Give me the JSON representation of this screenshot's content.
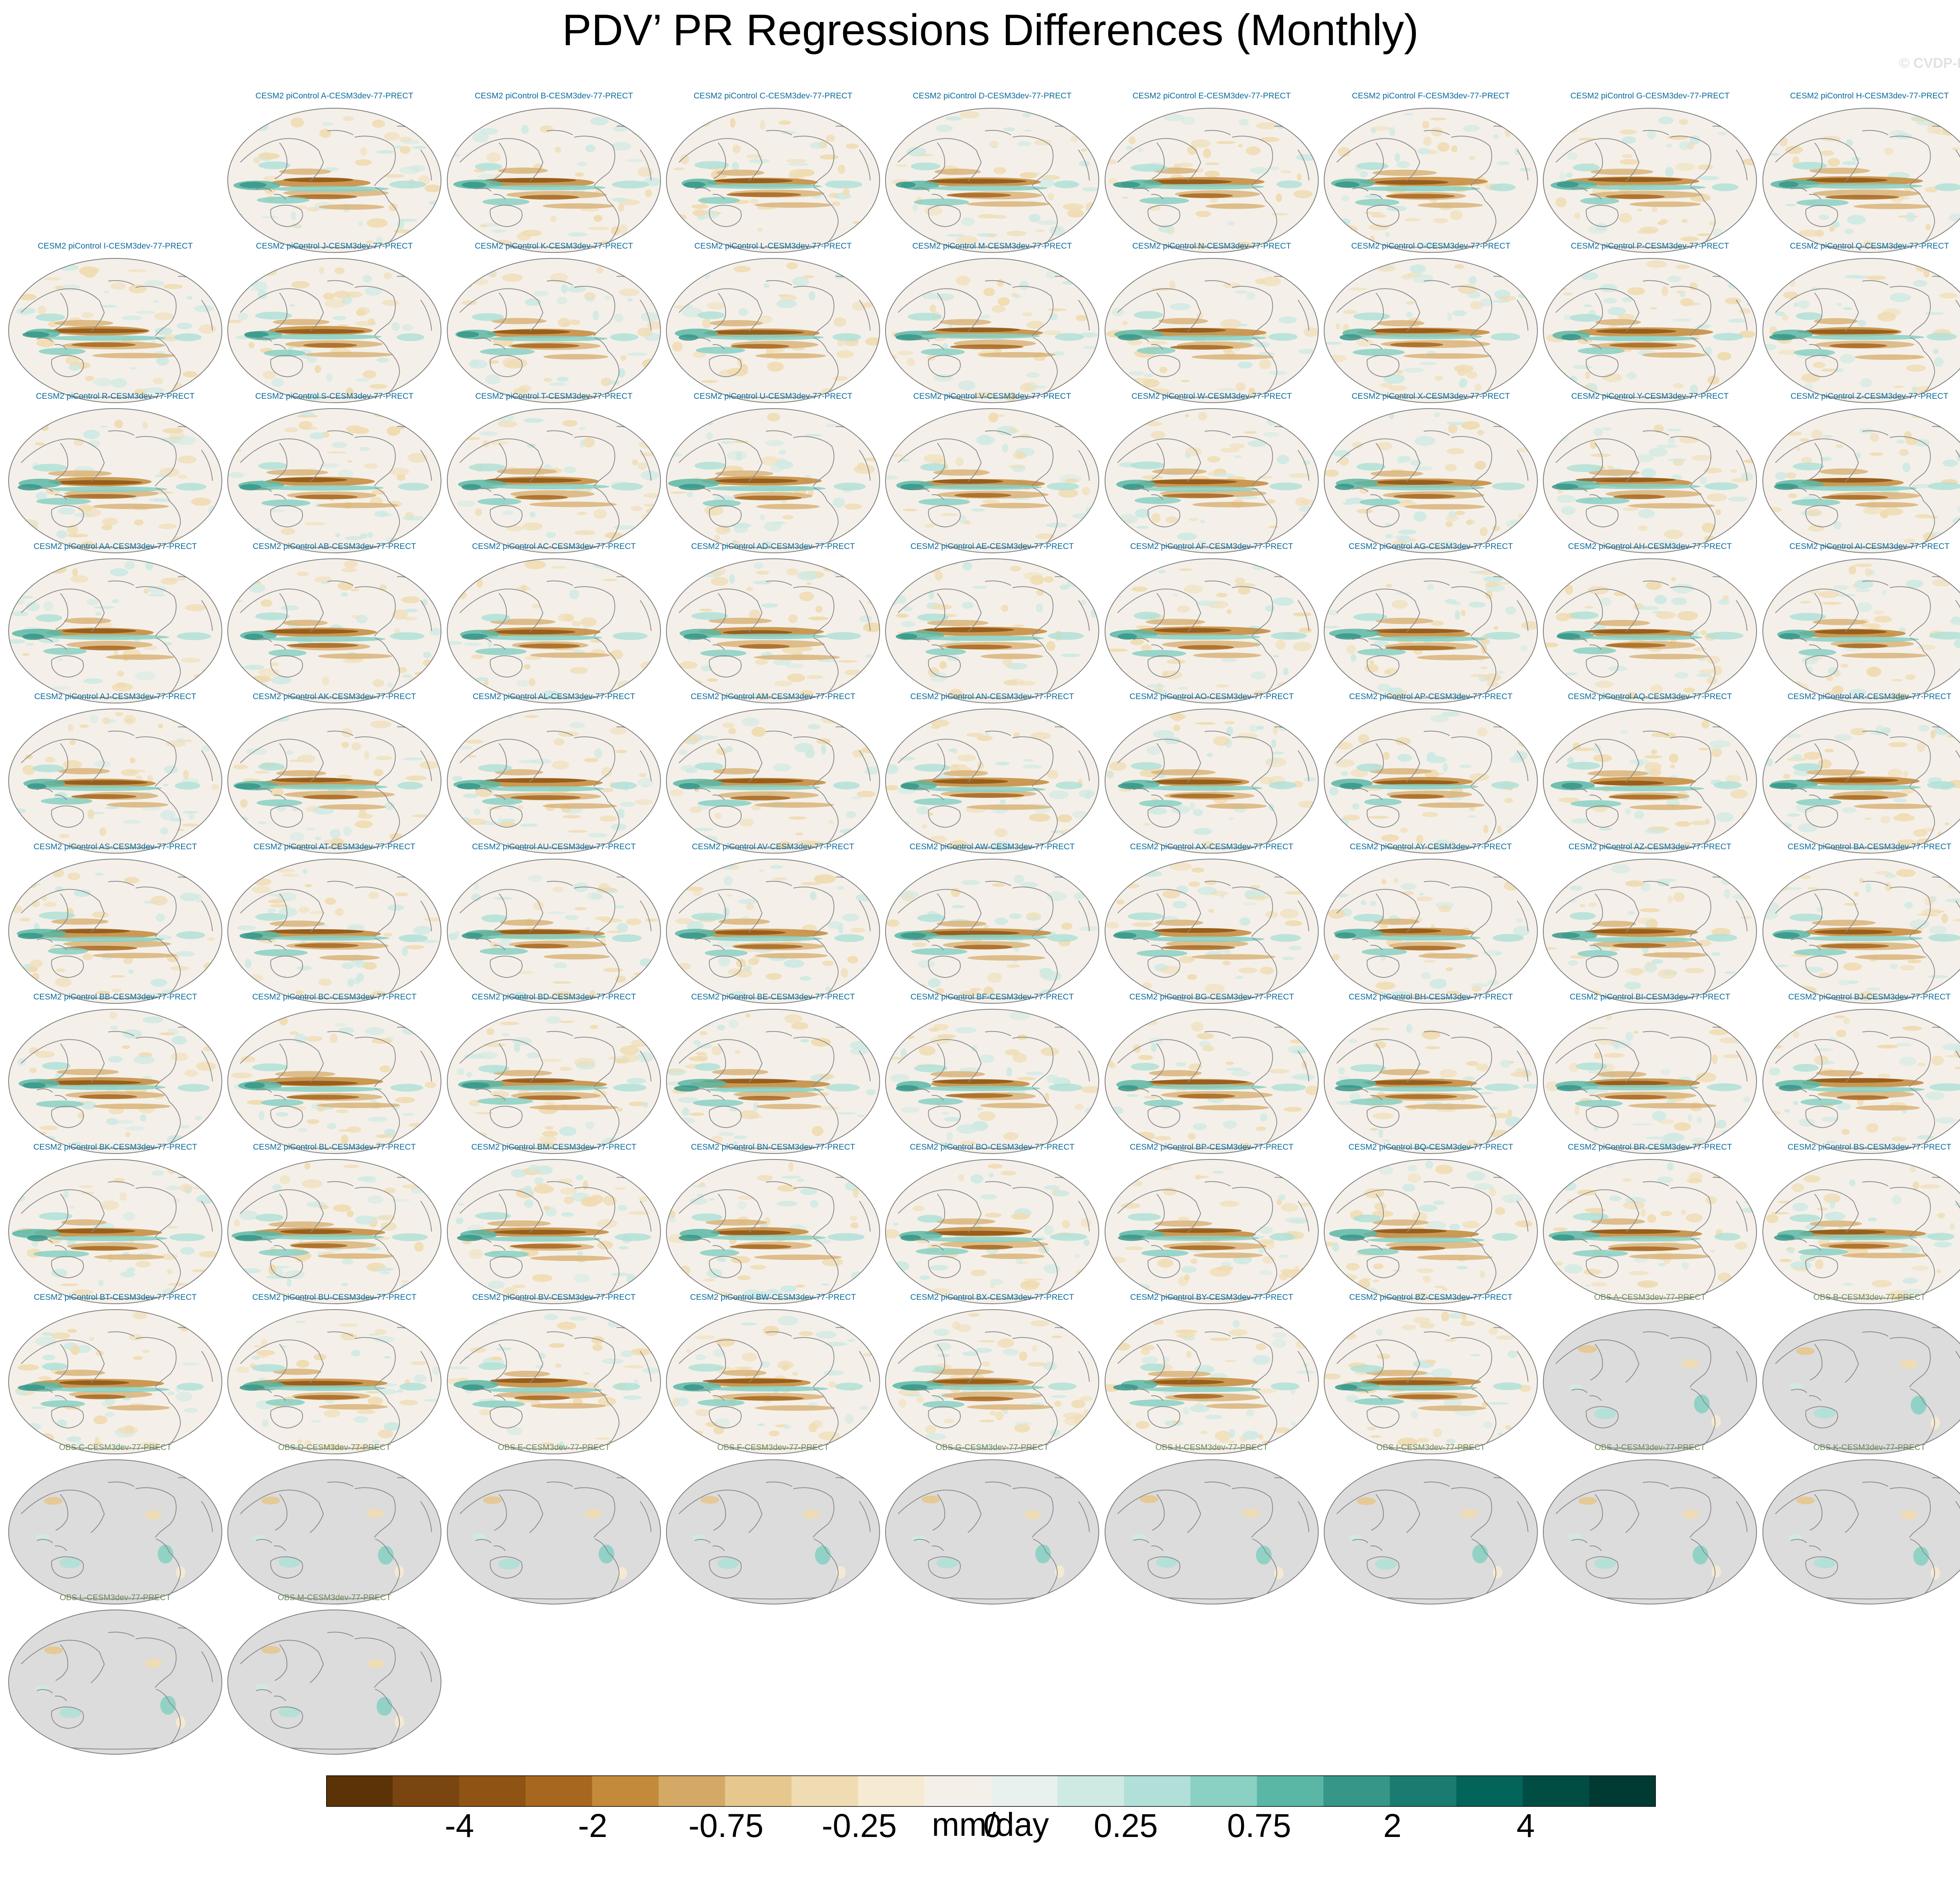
{
  "title": "PDV’ PR Regressions Differences (Monthly)",
  "watermark": "© CVDP-LE",
  "chart_data": {
    "type": "heatmap",
    "projection": "robinson-global-maps",
    "variable": "PRECT regression difference",
    "colorbar": {
      "label": "mm/day",
      "levels": [
        -6,
        -5,
        -4,
        -3,
        -2,
        -1,
        -0.75,
        -0.5,
        -0.25,
        -0.1,
        0,
        0.1,
        0.25,
        0.5,
        0.75,
        1,
        2,
        3,
        4,
        5,
        6
      ],
      "tick_labels": [
        "-4",
        "-2",
        "-0.75",
        "-0.25",
        "0",
        "0.25",
        "0.75",
        "2",
        "4"
      ],
      "colors": [
        "#5c3307",
        "#7a4510",
        "#8f5413",
        "#a8671f",
        "#c38a3a",
        "#d4a965",
        "#e6c88f",
        "#f0dcb3",
        "#f6ead2",
        "#f4f0e9",
        "#e9f1ef",
        "#cfe9e3",
        "#b0e0d7",
        "#8ad0c3",
        "#5ab7a6",
        "#369688",
        "#1a7c70",
        "#02645a",
        "#014d44",
        "#003a33"
      ]
    },
    "panels": [
      {
        "title": "CESM2 piControl A-CESM3dev-77-PRECT"
      },
      {
        "title": "CESM2 piControl B-CESM3dev-77-PRECT"
      },
      {
        "title": "CESM2 piControl C-CESM3dev-77-PRECT"
      },
      {
        "title": "CESM2 piControl D-CESM3dev-77-PRECT"
      },
      {
        "title": "CESM2 piControl E-CESM3dev-77-PRECT"
      },
      {
        "title": "CESM2 piControl F-CESM3dev-77-PRECT"
      },
      {
        "title": "CESM2 piControl G-CESM3dev-77-PRECT"
      },
      {
        "title": "CESM2 piControl H-CESM3dev-77-PRECT"
      },
      {
        "title": "CESM2 piControl I-CESM3dev-77-PRECT"
      },
      {
        "title": "CESM2 piControl J-CESM3dev-77-PRECT"
      },
      {
        "title": "CESM2 piControl K-CESM3dev-77-PRECT"
      },
      {
        "title": "CESM2 piControl L-CESM3dev-77-PRECT"
      },
      {
        "title": "CESM2 piControl M-CESM3dev-77-PRECT"
      },
      {
        "title": "CESM2 piControl N-CESM3dev-77-PRECT"
      },
      {
        "title": "CESM2 piControl O-CESM3dev-77-PRECT"
      },
      {
        "title": "CESM2 piControl P-CESM3dev-77-PRECT"
      },
      {
        "title": "CESM2 piControl Q-CESM3dev-77-PRECT"
      },
      {
        "title": "CESM2 piControl R-CESM3dev-77-PRECT"
      },
      {
        "title": "CESM2 piControl S-CESM3dev-77-PRECT"
      },
      {
        "title": "CESM2 piControl T-CESM3dev-77-PRECT"
      },
      {
        "title": "CESM2 piControl U-CESM3dev-77-PRECT"
      },
      {
        "title": "CESM2 piControl V-CESM3dev-77-PRECT"
      },
      {
        "title": "CESM2 piControl W-CESM3dev-77-PRECT"
      },
      {
        "title": "CESM2 piControl X-CESM3dev-77-PRECT"
      },
      {
        "title": "CESM2 piControl Y-CESM3dev-77-PRECT"
      },
      {
        "title": "CESM2 piControl Z-CESM3dev-77-PRECT"
      },
      {
        "title": "CESM2 piControl AA-CESM3dev-77-PRECT"
      },
      {
        "title": "CESM2 piControl AB-CESM3dev-77-PRECT"
      },
      {
        "title": "CESM2 piControl AC-CESM3dev-77-PRECT"
      },
      {
        "title": "CESM2 piControl AD-CESM3dev-77-PRECT"
      },
      {
        "title": "CESM2 piControl AE-CESM3dev-77-PRECT"
      },
      {
        "title": "CESM2 piControl AF-CESM3dev-77-PRECT"
      },
      {
        "title": "CESM2 piControl AG-CESM3dev-77-PRECT"
      },
      {
        "title": "CESM2 piControl AH-CESM3dev-77-PRECT"
      },
      {
        "title": "CESM2 piControl AI-CESM3dev-77-PRECT"
      },
      {
        "title": "CESM2 piControl AJ-CESM3dev-77-PRECT"
      },
      {
        "title": "CESM2 piControl AK-CESM3dev-77-PRECT"
      },
      {
        "title": "CESM2 piControl AL-CESM3dev-77-PRECT"
      },
      {
        "title": "CESM2 piControl AM-CESM3dev-77-PRECT"
      },
      {
        "title": "CESM2 piControl AN-CESM3dev-77-PRECT"
      },
      {
        "title": "CESM2 piControl AO-CESM3dev-77-PRECT"
      },
      {
        "title": "CESM2 piControl AP-CESM3dev-77-PRECT"
      },
      {
        "title": "CESM2 piControl AQ-CESM3dev-77-PRECT"
      },
      {
        "title": "CESM2 piControl AR-CESM3dev-77-PRECT"
      },
      {
        "title": "CESM2 piControl AS-CESM3dev-77-PRECT"
      },
      {
        "title": "CESM2 piControl AT-CESM3dev-77-PRECT"
      },
      {
        "title": "CESM2 piControl AU-CESM3dev-77-PRECT"
      },
      {
        "title": "CESM2 piControl AV-CESM3dev-77-PRECT"
      },
      {
        "title": "CESM2 piControl AW-CESM3dev-77-PRECT"
      },
      {
        "title": "CESM2 piControl AX-CESM3dev-77-PRECT"
      },
      {
        "title": "CESM2 piControl AY-CESM3dev-77-PRECT"
      },
      {
        "title": "CESM2 piControl AZ-CESM3dev-77-PRECT"
      },
      {
        "title": "CESM2 piControl BA-CESM3dev-77-PRECT"
      },
      {
        "title": "CESM2 piControl BB-CESM3dev-77-PRECT"
      },
      {
        "title": "CESM2 piControl BC-CESM3dev-77-PRECT"
      },
      {
        "title": "CESM2 piControl BD-CESM3dev-77-PRECT"
      },
      {
        "title": "CESM2 piControl BE-CESM3dev-77-PRECT"
      },
      {
        "title": "CESM2 piControl BF-CESM3dev-77-PRECT"
      },
      {
        "title": "CESM2 piControl BG-CESM3dev-77-PRECT"
      },
      {
        "title": "CESM2 piControl BH-CESM3dev-77-PRECT"
      },
      {
        "title": "CESM2 piControl BI-CESM3dev-77-PRECT"
      },
      {
        "title": "CESM2 piControl BJ-CESM3dev-77-PRECT"
      },
      {
        "title": "CESM2 piControl BK-CESM3dev-77-PRECT"
      },
      {
        "title": "CESM2 piControl BL-CESM3dev-77-PRECT"
      },
      {
        "title": "CESM2 piControl BM-CESM3dev-77-PRECT"
      },
      {
        "title": "CESM2 piControl BN-CESM3dev-77-PRECT"
      },
      {
        "title": "CESM2 piControl BO-CESM3dev-77-PRECT"
      },
      {
        "title": "CESM2 piControl BP-CESM3dev-77-PRECT"
      },
      {
        "title": "CESM2 piControl BQ-CESM3dev-77-PRECT"
      },
      {
        "title": "CESM2 piControl BR-CESM3dev-77-PRECT"
      },
      {
        "title": "CESM2 piControl BS-CESM3dev-77-PRECT"
      },
      {
        "title": "CESM2 piControl BT-CESM3dev-77-PRECT"
      },
      {
        "title": "CESM2 piControl BU-CESM3dev-77-PRECT"
      },
      {
        "title": "CESM2 piControl BV-CESM3dev-77-PRECT"
      },
      {
        "title": "CESM2 piControl BW-CESM3dev-77-PRECT"
      },
      {
        "title": "CESM2 piControl BX-CESM3dev-77-PRECT"
      },
      {
        "title": "CESM2 piControl BY-CESM3dev-77-PRECT"
      },
      {
        "title": "CESM2 piControl BZ-CESM3dev-77-PRECT"
      },
      {
        "title": "OBS A-CESM3dev-77-PRECT"
      },
      {
        "title": "OBS B-CESM3dev-77-PRECT"
      },
      {
        "title": "OBS C-CESM3dev-77-PRECT"
      },
      {
        "title": "OBS D-CESM3dev-77-PRECT"
      },
      {
        "title": "OBS E-CESM3dev-77-PRECT"
      },
      {
        "title": "OBS F-CESM3dev-77-PRECT"
      },
      {
        "title": "OBS G-CESM3dev-77-PRECT"
      },
      {
        "title": "OBS H-CESM3dev-77-PRECT"
      },
      {
        "title": "OBS I-CESM3dev-77-PRECT"
      },
      {
        "title": "OBS J-CESM3dev-77-PRECT"
      },
      {
        "title": "OBS K-CESM3dev-77-PRECT"
      },
      {
        "title": "OBS L-CESM3dev-77-PRECT"
      },
      {
        "title": "OBS M-CESM3dev-77-PRECT"
      }
    ]
  }
}
